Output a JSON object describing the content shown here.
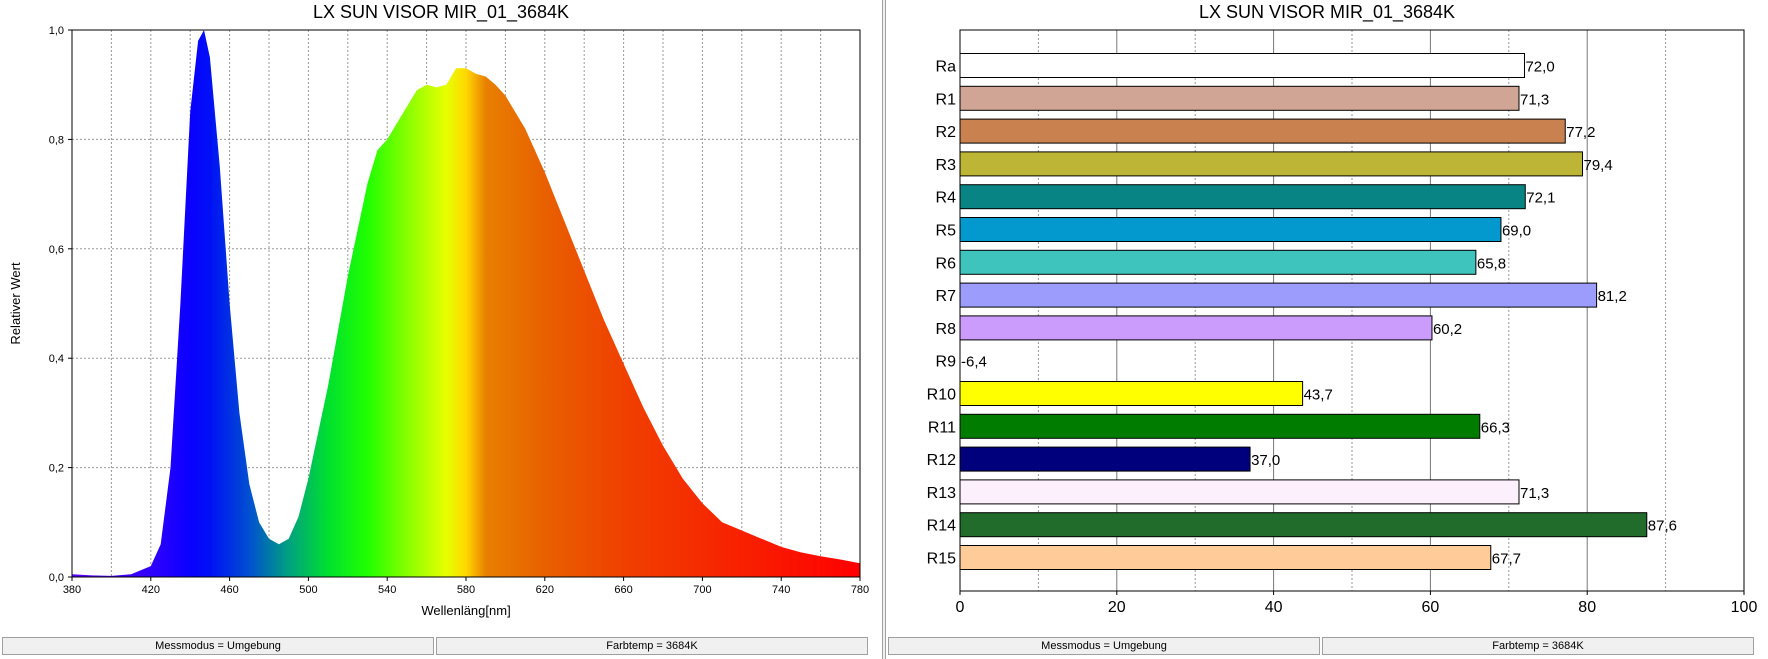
{
  "chart_data": [
    {
      "type": "area",
      "title": "LX SUN VISOR MIR_01_3684K",
      "xlabel": "Wellenläng[nm]",
      "ylabel": "Relativer Wert",
      "xlim": [
        380,
        780
      ],
      "ylim": [
        0,
        1.0
      ],
      "grid": true,
      "xticks": [
        "380",
        "420",
        "460",
        "500",
        "540",
        "580",
        "620",
        "660",
        "700",
        "740",
        "780"
      ],
      "yticks": [
        "0,0",
        "0,2",
        "0,4",
        "0,6",
        "0,8",
        "1,0"
      ],
      "x": [
        380,
        390,
        400,
        410,
        420,
        425,
        430,
        435,
        440,
        444,
        447,
        450,
        455,
        460,
        465,
        470,
        475,
        480,
        485,
        490,
        495,
        500,
        510,
        520,
        530,
        535,
        540,
        545,
        550,
        555,
        560,
        565,
        570,
        575,
        580,
        585,
        590,
        595,
        600,
        610,
        620,
        630,
        640,
        650,
        660,
        670,
        680,
        690,
        700,
        710,
        720,
        730,
        740,
        750,
        760,
        770,
        780
      ],
      "y": [
        0.005,
        0.003,
        0.002,
        0.005,
        0.02,
        0.06,
        0.2,
        0.5,
        0.85,
        0.98,
        1.0,
        0.95,
        0.75,
        0.5,
        0.3,
        0.17,
        0.1,
        0.07,
        0.06,
        0.07,
        0.11,
        0.18,
        0.35,
        0.55,
        0.72,
        0.78,
        0.8,
        0.83,
        0.86,
        0.89,
        0.9,
        0.895,
        0.9,
        0.93,
        0.93,
        0.92,
        0.915,
        0.9,
        0.88,
        0.82,
        0.74,
        0.65,
        0.56,
        0.47,
        0.39,
        0.31,
        0.24,
        0.18,
        0.135,
        0.1,
        0.085,
        0.07,
        0.055,
        0.045,
        0.038,
        0.032,
        0.025
      ]
    },
    {
      "type": "bar",
      "title": "LX SUN VISOR MIR_01_3684K",
      "xlim": [
        0,
        100
      ],
      "grid": true,
      "xticks": [
        "0",
        "20",
        "40",
        "60",
        "80",
        "100"
      ],
      "categories": [
        "Ra",
        "R1",
        "R2",
        "R3",
        "R4",
        "R5",
        "R6",
        "R7",
        "R8",
        "R9",
        "R10",
        "R11",
        "R12",
        "R13",
        "R14",
        "R15"
      ],
      "values": [
        72.0,
        71.3,
        77.2,
        79.4,
        72.1,
        69.0,
        65.8,
        81.2,
        60.2,
        -6.4,
        43.7,
        66.3,
        37.0,
        71.3,
        87.6,
        67.7
      ],
      "value_labels": [
        "72,0",
        "71,3",
        "77,2",
        "79,4",
        "72,1",
        "69,0",
        "65,8",
        "81,2",
        "60,2",
        "-6,4",
        "43,7",
        "66,3",
        "37,0",
        "71,3",
        "87,6",
        "67,7"
      ],
      "colors": [
        "#ffffff",
        "#d0a595",
        "#c8814f",
        "#bdb536",
        "#088484",
        "#0399ce",
        "#3ec4bd",
        "#9c9cfc",
        "#cc9cfc",
        "#ff0000",
        "#ffff00",
        "#007c00",
        "#00007c",
        "#fcf0fc",
        "#216b2b",
        "#ffcc99"
      ]
    }
  ],
  "status": {
    "left_mode": "Messmodus = Umgebung",
    "left_temp": "Farbtemp = 3684K",
    "right_mode": "Messmodus = Umgebung",
    "right_temp": "Farbtemp = 3684K"
  }
}
